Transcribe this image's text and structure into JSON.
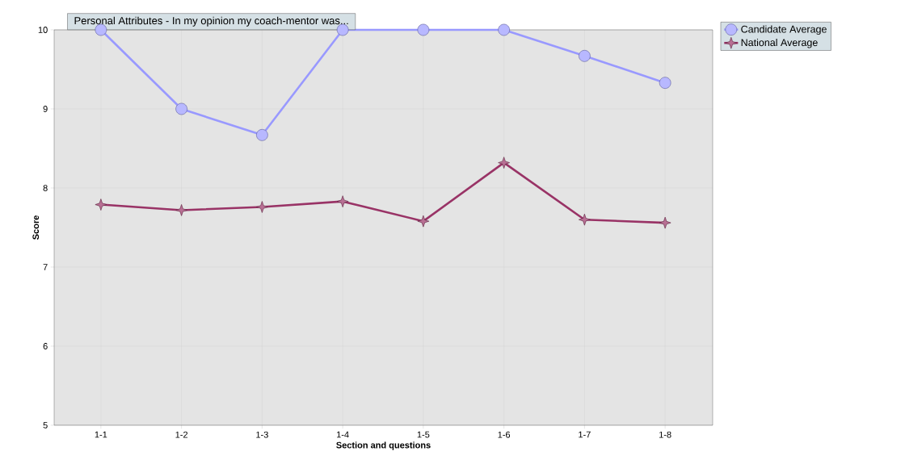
{
  "chart_data": {
    "type": "line",
    "title": "Personal Attributes - In my opinion my coach-mentor was...",
    "xlabel": "Section and questions",
    "ylabel": "Score",
    "categories": [
      "1-1",
      "1-2",
      "1-3",
      "1-4",
      "1-5",
      "1-6",
      "1-7",
      "1-8"
    ],
    "series": [
      {
        "name": "Candidate Average",
        "color": "#9999ff",
        "marker": "circle",
        "values": [
          10,
          9,
          8.67,
          10,
          10,
          10,
          9.67,
          9.33
        ]
      },
      {
        "name": "National Average",
        "color": "#993366",
        "marker": "star",
        "values": [
          7.79,
          7.72,
          7.76,
          7.83,
          7.58,
          8.32,
          7.6,
          7.56
        ]
      }
    ],
    "ylim": [
      5,
      10
    ],
    "yticks": [
      5,
      6,
      7,
      8,
      9,
      10
    ],
    "grid": true,
    "legend": "top right",
    "line_style": "solid"
  }
}
